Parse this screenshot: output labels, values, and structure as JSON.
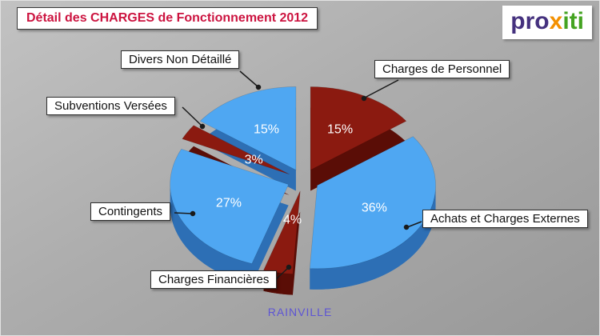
{
  "title": "Détail des CHARGES de Fonctionnement 2012",
  "footer": "RAINVILLE",
  "logo": {
    "text": "proxiti",
    "letters": [
      {
        "ch": "p",
        "color": "#45317e"
      },
      {
        "ch": "r",
        "color": "#45317e"
      },
      {
        "ch": "o",
        "color": "#45317e"
      },
      {
        "ch": "x",
        "color": "#f39000"
      },
      {
        "ch": "i",
        "color": "#44a321"
      },
      {
        "ch": "t",
        "color": "#44a321"
      },
      {
        "ch": "i",
        "color": "#44a321"
      }
    ]
  },
  "colors": {
    "title": "#cc1440",
    "footer": "#5d54d4",
    "label_text": "#111111",
    "pct_text": "#ffffff",
    "blue": "#4fa7f2",
    "blue_side": "#2d6fb5",
    "red": "#8b1a10",
    "red_side": "#5a0d06"
  },
  "chart_data": {
    "type": "pie",
    "title": "Détail des CHARGES de Fonctionnement 2012",
    "subtitle": "RAINVILLE",
    "unit": "percent",
    "style": "3d-exploded",
    "start_angle_deg": -90,
    "direction": "clockwise",
    "legend_position": "callout-labels",
    "slices": [
      {
        "label": "Charges de Personnel",
        "value": 15,
        "pct_label": "15%",
        "color": "#8b1a10",
        "side_color": "#5a0d06"
      },
      {
        "label": "Achats et Charges Externes",
        "value": 36,
        "pct_label": "36%",
        "color": "#4fa7f2",
        "side_color": "#2d6fb5"
      },
      {
        "label": "Charges Financières",
        "value": 4,
        "pct_label": "4%",
        "color": "#8b1a10",
        "side_color": "#5a0d06"
      },
      {
        "label": "Contingents",
        "value": 27,
        "pct_label": "27%",
        "color": "#4fa7f2",
        "side_color": "#2d6fb5"
      },
      {
        "label": "Subventions Versées",
        "value": 3,
        "pct_label": "3%",
        "color": "#8b1a10",
        "side_color": "#5a0d06"
      },
      {
        "label": "Divers Non Détaillé",
        "value": 15,
        "pct_label": "15%",
        "color": "#4fa7f2",
        "side_color": "#2d6fb5"
      }
    ]
  }
}
